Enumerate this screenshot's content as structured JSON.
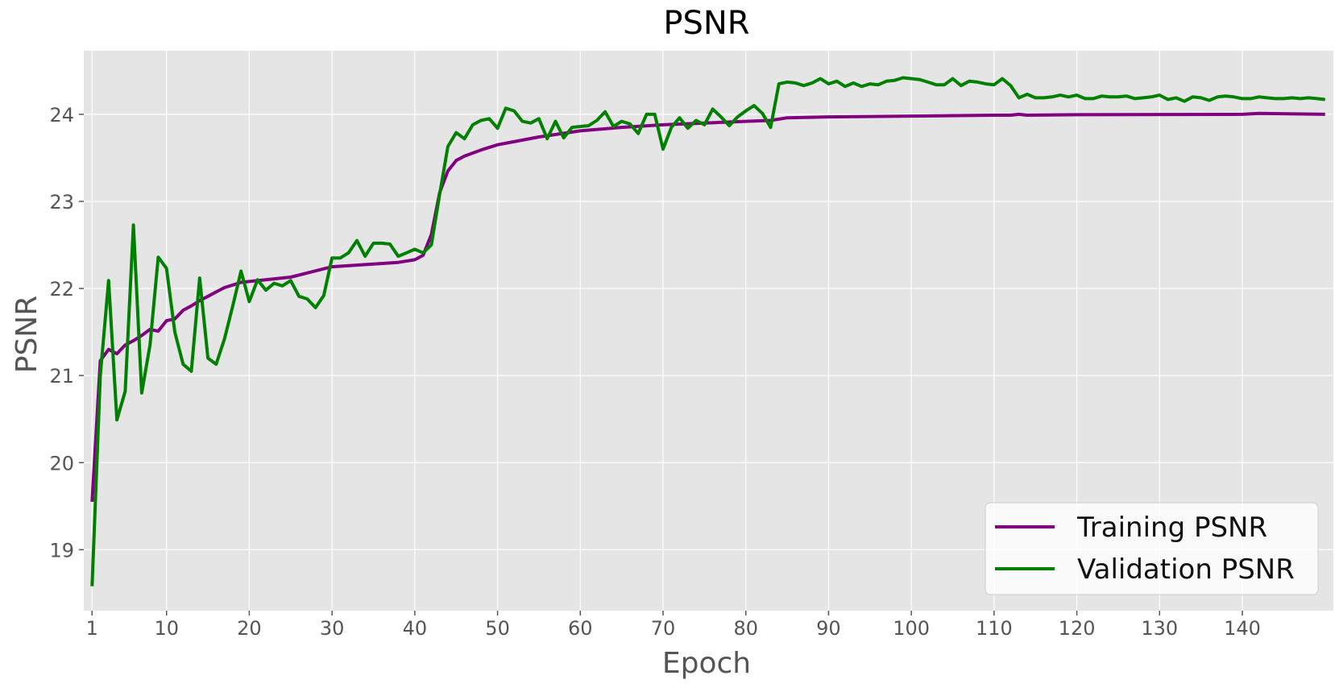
{
  "chart_data": {
    "type": "line",
    "title": "PSNR",
    "xlabel": "Epoch",
    "ylabel": "PSNR",
    "xlim": [
      0,
      151
    ],
    "ylim": [
      18.3,
      24.73
    ],
    "grid": true,
    "legend_position": "bottom-right",
    "xticks": [
      1,
      10,
      20,
      30,
      40,
      50,
      60,
      70,
      80,
      90,
      100,
      110,
      120,
      130,
      140
    ],
    "yticks": [
      19,
      20,
      21,
      22,
      23,
      24
    ],
    "colors": {
      "background": "#e5e5e5",
      "grid": "#ffffff"
    },
    "series": [
      {
        "name": "Training PSNR",
        "color": "#800080",
        "anchors": [
          [
            1,
            19.55
          ],
          [
            2,
            21.17
          ],
          [
            3,
            21.3
          ],
          [
            4,
            21.25
          ],
          [
            5,
            21.35
          ],
          [
            6,
            21.4
          ],
          [
            7,
            21.46
          ],
          [
            8,
            21.53
          ],
          [
            9,
            21.51
          ],
          [
            10,
            21.63
          ],
          [
            11,
            21.65
          ],
          [
            12,
            21.75
          ],
          [
            13,
            21.8
          ],
          [
            14,
            21.86
          ],
          [
            15,
            21.91
          ],
          [
            16,
            21.96
          ],
          [
            17,
            22.01
          ],
          [
            18,
            22.04
          ],
          [
            19,
            22.07
          ],
          [
            20,
            22.08
          ],
          [
            25,
            22.13
          ],
          [
            30,
            22.25
          ],
          [
            35,
            22.28
          ],
          [
            38,
            22.3
          ],
          [
            40,
            22.33
          ],
          [
            41,
            22.38
          ],
          [
            42,
            22.62
          ],
          [
            43,
            23.1
          ],
          [
            44,
            23.35
          ],
          [
            45,
            23.47
          ],
          [
            46,
            23.52
          ],
          [
            48,
            23.59
          ],
          [
            50,
            23.65
          ],
          [
            55,
            23.74
          ],
          [
            60,
            23.81
          ],
          [
            65,
            23.85
          ],
          [
            70,
            23.88
          ],
          [
            80,
            23.92
          ],
          [
            83,
            23.93
          ],
          [
            85,
            23.96
          ],
          [
            90,
            23.97
          ],
          [
            100,
            23.98
          ],
          [
            110,
            23.99
          ],
          [
            112,
            23.99
          ],
          [
            113,
            24.0
          ],
          [
            114,
            23.99
          ],
          [
            120,
            23.995
          ],
          [
            140,
            24.0
          ],
          [
            142,
            24.01
          ],
          [
            150,
            24.0
          ]
        ]
      },
      {
        "name": "Validation PSNR",
        "color": "#008000",
        "anchors": [
          [
            1,
            18.58
          ],
          [
            2,
            21.0
          ],
          [
            3,
            22.09
          ],
          [
            4,
            20.49
          ],
          [
            5,
            20.82
          ],
          [
            6,
            22.73
          ],
          [
            7,
            20.8
          ],
          [
            8,
            21.35
          ],
          [
            9,
            22.36
          ],
          [
            10,
            22.23
          ],
          [
            11,
            21.5
          ],
          [
            12,
            21.13
          ],
          [
            13,
            21.05
          ],
          [
            14,
            22.12
          ],
          [
            15,
            21.2
          ],
          [
            16,
            21.13
          ],
          [
            17,
            21.42
          ],
          [
            18,
            21.8
          ],
          [
            19,
            22.2
          ],
          [
            20,
            21.85
          ],
          [
            21,
            22.1
          ],
          [
            22,
            21.98
          ],
          [
            23,
            22.06
          ],
          [
            24,
            22.03
          ],
          [
            25,
            22.09
          ],
          [
            26,
            21.91
          ],
          [
            27,
            21.88
          ],
          [
            28,
            21.78
          ],
          [
            29,
            21.92
          ],
          [
            30,
            22.35
          ],
          [
            31,
            22.35
          ],
          [
            32,
            22.41
          ],
          [
            33,
            22.55
          ],
          [
            34,
            22.37
          ],
          [
            35,
            22.52
          ],
          [
            36,
            22.52
          ],
          [
            37,
            22.51
          ],
          [
            38,
            22.37
          ],
          [
            39,
            22.41
          ],
          [
            40,
            22.45
          ],
          [
            41,
            22.41
          ],
          [
            42,
            22.5
          ],
          [
            43,
            23.08
          ],
          [
            44,
            23.63
          ],
          [
            45,
            23.79
          ],
          [
            46,
            23.72
          ],
          [
            47,
            23.88
          ],
          [
            48,
            23.93
          ],
          [
            49,
            23.95
          ],
          [
            50,
            23.84
          ],
          [
            51,
            24.07
          ],
          [
            52,
            24.04
          ],
          [
            53,
            23.92
          ],
          [
            54,
            23.9
          ],
          [
            55,
            23.95
          ],
          [
            56,
            23.72
          ],
          [
            57,
            23.92
          ],
          [
            58,
            23.73
          ],
          [
            59,
            23.85
          ],
          [
            60,
            23.86
          ],
          [
            61,
            23.87
          ],
          [
            62,
            23.93
          ],
          [
            63,
            24.03
          ],
          [
            64,
            23.86
          ],
          [
            65,
            23.92
          ],
          [
            66,
            23.89
          ],
          [
            67,
            23.78
          ],
          [
            68,
            24.0
          ],
          [
            69,
            24.0
          ],
          [
            70,
            23.6
          ],
          [
            71,
            23.85
          ],
          [
            72,
            23.96
          ],
          [
            73,
            23.84
          ],
          [
            74,
            23.93
          ],
          [
            75,
            23.88
          ],
          [
            76,
            24.06
          ],
          [
            77,
            23.97
          ],
          [
            78,
            23.87
          ],
          [
            79,
            23.97
          ],
          [
            80,
            24.04
          ],
          [
            81,
            24.1
          ],
          [
            82,
            24.01
          ],
          [
            83,
            23.85
          ],
          [
            84,
            24.35
          ],
          [
            85,
            24.37
          ],
          [
            86,
            24.36
          ],
          [
            87,
            24.33
          ],
          [
            88,
            24.36
          ],
          [
            89,
            24.41
          ],
          [
            90,
            24.35
          ],
          [
            91,
            24.38
          ],
          [
            92,
            24.32
          ],
          [
            93,
            24.36
          ],
          [
            94,
            24.32
          ],
          [
            95,
            24.35
          ],
          [
            96,
            24.34
          ],
          [
            97,
            24.38
          ],
          [
            98,
            24.39
          ],
          [
            99,
            24.42
          ],
          [
            100,
            24.41
          ],
          [
            101,
            24.4
          ],
          [
            102,
            24.37
          ],
          [
            103,
            24.34
          ],
          [
            104,
            24.34
          ],
          [
            105,
            24.41
          ],
          [
            106,
            24.33
          ],
          [
            107,
            24.38
          ],
          [
            108,
            24.37
          ],
          [
            109,
            24.35
          ],
          [
            110,
            24.34
          ],
          [
            111,
            24.41
          ],
          [
            112,
            24.33
          ],
          [
            113,
            24.19
          ],
          [
            114,
            24.23
          ],
          [
            115,
            24.19
          ],
          [
            116,
            24.19
          ],
          [
            117,
            24.2
          ],
          [
            118,
            24.22
          ],
          [
            119,
            24.2
          ],
          [
            120,
            24.22
          ],
          [
            121,
            24.18
          ],
          [
            122,
            24.18
          ],
          [
            123,
            24.21
          ],
          [
            124,
            24.2
          ],
          [
            125,
            24.2
          ],
          [
            126,
            24.21
          ],
          [
            127,
            24.18
          ],
          [
            128,
            24.19
          ],
          [
            129,
            24.2
          ],
          [
            130,
            24.22
          ],
          [
            131,
            24.17
          ],
          [
            132,
            24.19
          ],
          [
            133,
            24.15
          ],
          [
            134,
            24.2
          ],
          [
            135,
            24.19
          ],
          [
            136,
            24.16
          ],
          [
            137,
            24.2
          ],
          [
            138,
            24.21
          ],
          [
            139,
            24.2
          ],
          [
            140,
            24.18
          ],
          [
            141,
            24.18
          ],
          [
            142,
            24.2
          ],
          [
            143,
            24.19
          ],
          [
            144,
            24.18
          ],
          [
            145,
            24.18
          ],
          [
            146,
            24.19
          ],
          [
            147,
            24.18
          ],
          [
            148,
            24.19
          ],
          [
            149,
            24.18
          ],
          [
            150,
            24.17
          ]
        ]
      }
    ]
  }
}
